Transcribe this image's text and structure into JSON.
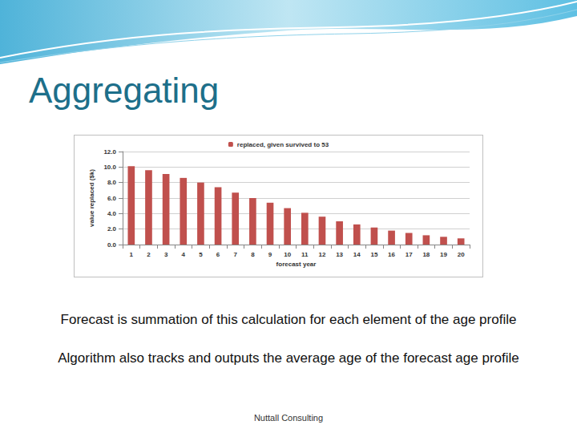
{
  "slide": {
    "title": "Aggregating",
    "notes": [
      "Forecast is summation of this calculation for each element of the age profile",
      "Algorithm also tracks and outputs the average age of the forecast age profile"
    ],
    "footer": "Nuttall Consulting"
  },
  "chart_data": {
    "type": "bar",
    "x_label": "forecast year",
    "y_label": "value replaced ($k)",
    "categories": [
      "1",
      "2",
      "3",
      "4",
      "5",
      "6",
      "7",
      "8",
      "9",
      "10",
      "11",
      "12",
      "13",
      "14",
      "15",
      "16",
      "17",
      "18",
      "19",
      "20"
    ],
    "series": [
      {
        "name": "replaced, given survived to 53",
        "color": "#c0504d",
        "values": [
          10.1,
          9.6,
          9.1,
          8.6,
          8.0,
          7.4,
          6.7,
          6.0,
          5.4,
          4.7,
          4.1,
          3.6,
          3.0,
          2.6,
          2.2,
          1.8,
          1.5,
          1.2,
          1.0,
          0.8
        ]
      }
    ],
    "ylim": [
      0,
      12
    ],
    "yticks": [
      {
        "value": 0,
        "label": "0.0"
      },
      {
        "value": 2,
        "label": "2.0"
      },
      {
        "value": 4,
        "label": "4.0"
      },
      {
        "value": 6,
        "label": "6.0"
      },
      {
        "value": 8,
        "label": "8.0"
      },
      {
        "value": 10,
        "label": "10.0"
      },
      {
        "value": 12,
        "label": "12.0"
      }
    ],
    "grid": true,
    "legend": "top"
  }
}
